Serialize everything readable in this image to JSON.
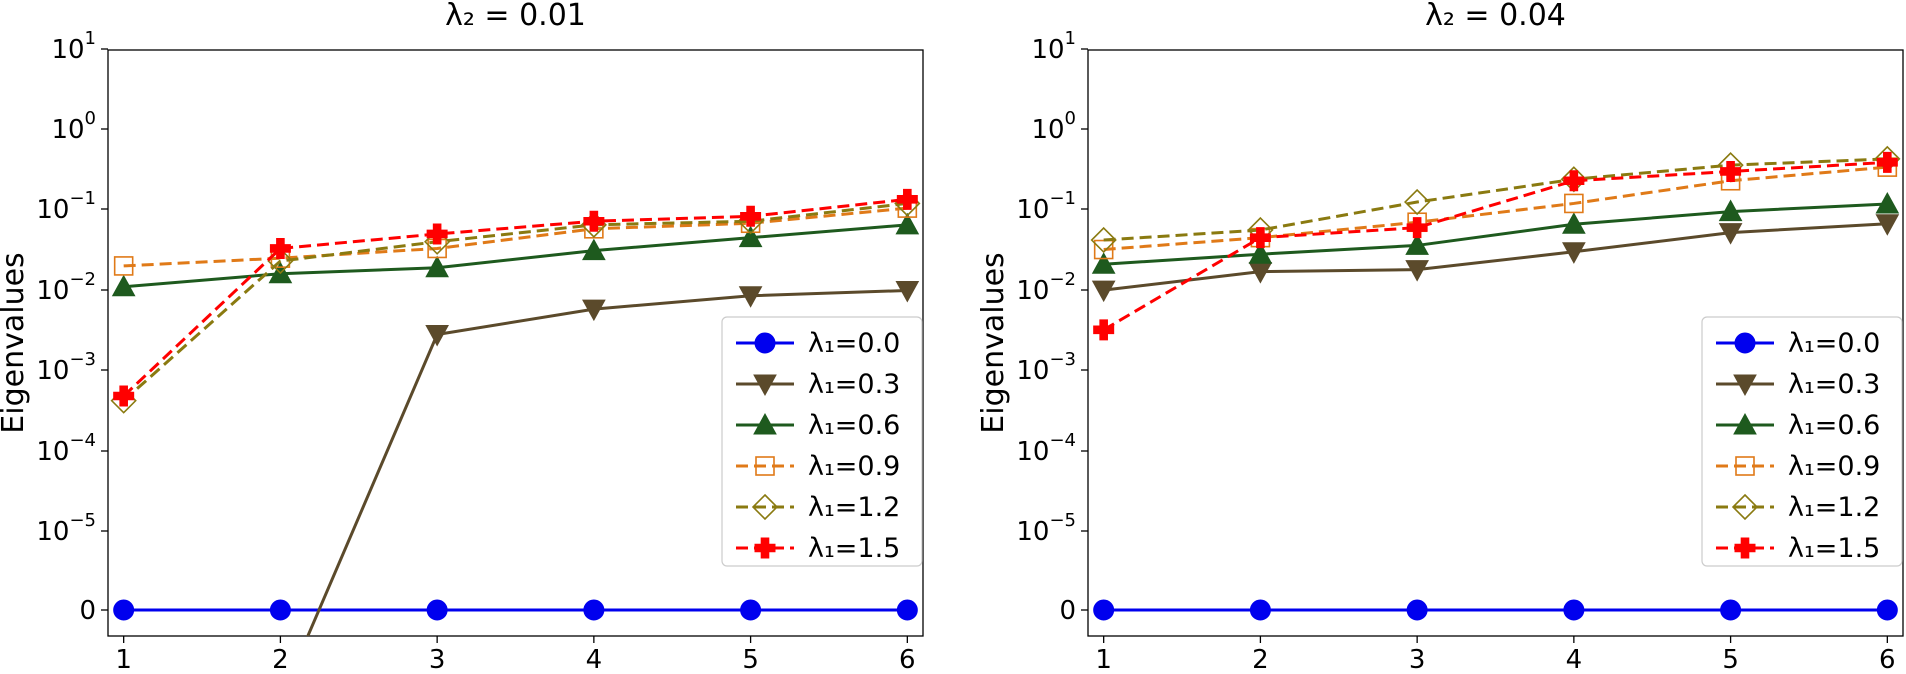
{
  "chart_data": [
    {
      "type": "line",
      "title": "λ₂ = 0.01",
      "xlabel": "",
      "ylabel": "Eigenvalues",
      "yscale": "symlog",
      "xlim": [
        0.9,
        6.1
      ],
      "x": [
        1,
        2,
        3,
        4,
        5,
        6
      ],
      "x_ticks": [
        "1",
        "2",
        "3",
        "4",
        "5",
        "6"
      ],
      "y_ticks": [
        {
          "base": "0",
          "exp": ""
        },
        {
          "base": "10",
          "exp": "−5"
        },
        {
          "base": "10",
          "exp": "−4"
        },
        {
          "base": "10",
          "exp": "−3"
        },
        {
          "base": "10",
          "exp": "−2"
        },
        {
          "base": "10",
          "exp": "−1"
        },
        {
          "base": "10",
          "exp": "0"
        },
        {
          "base": "10",
          "exp": "1"
        }
      ],
      "grid": false,
      "legend_position": "lower-right",
      "series": [
        {
          "name": "λ₁=0.0",
          "color": "#0000ee",
          "dash": "solid",
          "marker": "circle",
          "values": [
            0,
            0,
            0,
            0,
            0,
            0
          ]
        },
        {
          "name": "λ₁=0.3",
          "color": "#5b4a2b",
          "dash": "solid",
          "marker": "triangle-down",
          "values": [
            -0.001,
            -0.001,
            0.0028,
            0.0058,
            0.0085,
            0.0099
          ]
        },
        {
          "name": "λ₁=0.6",
          "color": "#1e5a1e",
          "dash": "solid",
          "marker": "triangle-up",
          "values": [
            0.011,
            0.016,
            0.019,
            0.031,
            0.045,
            0.065
          ]
        },
        {
          "name": "λ₁=0.9",
          "color": "#e07a18",
          "dash": "dashed",
          "marker": "square-open",
          "values": [
            0.02,
            0.025,
            0.033,
            0.058,
            0.068,
            0.105
          ]
        },
        {
          "name": "λ₁=1.2",
          "color": "#8a7a10",
          "dash": "dashed",
          "marker": "diamond-open",
          "values": [
            0.00042,
            0.023,
            0.04,
            0.065,
            0.072,
            0.12
          ]
        },
        {
          "name": "λ₁=1.5",
          "color": "#ff0000",
          "dash": "dashed",
          "marker": "plus-filled",
          "values": [
            0.00048,
            0.033,
            0.05,
            0.072,
            0.083,
            0.135
          ]
        }
      ]
    },
    {
      "type": "line",
      "title": "λ₂ = 0.04",
      "xlabel": "",
      "ylabel": "Eigenvalues",
      "yscale": "symlog",
      "xlim": [
        0.9,
        6.1
      ],
      "x": [
        1,
        2,
        3,
        4,
        5,
        6
      ],
      "x_ticks": [
        "1",
        "2",
        "3",
        "4",
        "5",
        "6"
      ],
      "y_ticks": [
        {
          "base": "0",
          "exp": ""
        },
        {
          "base": "10",
          "exp": "−5"
        },
        {
          "base": "10",
          "exp": "−4"
        },
        {
          "base": "10",
          "exp": "−3"
        },
        {
          "base": "10",
          "exp": "−2"
        },
        {
          "base": "10",
          "exp": "−1"
        },
        {
          "base": "10",
          "exp": "0"
        },
        {
          "base": "10",
          "exp": "1"
        }
      ],
      "grid": false,
      "legend_position": "lower-right",
      "series": [
        {
          "name": "λ₁=0.0",
          "color": "#0000ee",
          "dash": "solid",
          "marker": "circle",
          "values": [
            0,
            0,
            0,
            0,
            0,
            0
          ]
        },
        {
          "name": "λ₁=0.3",
          "color": "#5b4a2b",
          "dash": "solid",
          "marker": "triangle-down",
          "values": [
            0.01,
            0.017,
            0.018,
            0.03,
            0.052,
            0.067
          ]
        },
        {
          "name": "λ₁=0.6",
          "color": "#1e5a1e",
          "dash": "solid",
          "marker": "triangle-up",
          "values": [
            0.021,
            0.028,
            0.036,
            0.066,
            0.095,
            0.118
          ]
        },
        {
          "name": "λ₁=0.9",
          "color": "#e07a18",
          "dash": "dashed",
          "marker": "square-open",
          "values": [
            0.032,
            0.045,
            0.07,
            0.12,
            0.23,
            0.34
          ]
        },
        {
          "name": "λ₁=1.2",
          "color": "#8a7a10",
          "dash": "dashed",
          "marker": "diamond-open",
          "values": [
            0.042,
            0.056,
            0.125,
            0.24,
            0.36,
            0.43
          ]
        },
        {
          "name": "λ₁=1.5",
          "color": "#ff0000",
          "dash": "dashed",
          "marker": "plus-filled",
          "values": [
            0.0032,
            0.045,
            0.06,
            0.23,
            0.3,
            0.39
          ]
        }
      ]
    }
  ]
}
